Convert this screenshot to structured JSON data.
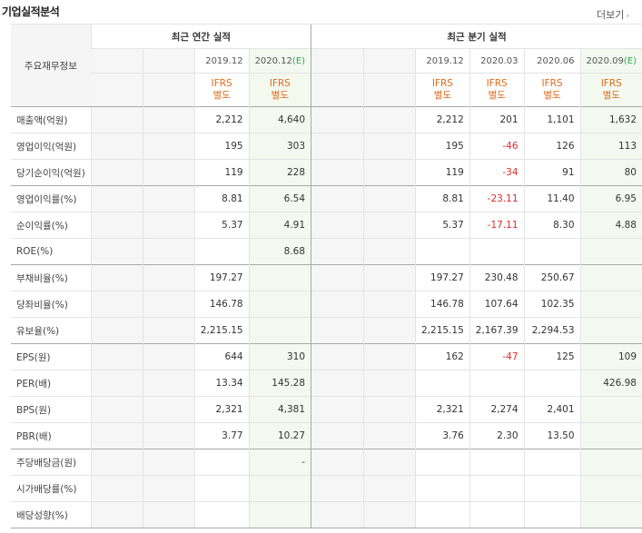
{
  "title": "기업실적분석",
  "more_label": "더보기",
  "more_chevron": "›",
  "row_header": "주요재무정보",
  "annual_group": "최근 연간 실적",
  "quarter_group": "최근 분기 실적",
  "annual_cols": [
    {
      "period": "",
      "est": "",
      "ifrs1": "",
      "ifrs2": ""
    },
    {
      "period": "",
      "est": "",
      "ifrs1": "",
      "ifrs2": ""
    },
    {
      "period": "2019.12",
      "est": "",
      "ifrs1": "IFRS",
      "ifrs2": "별도"
    },
    {
      "period": "2020.12",
      "est": "(E)",
      "ifrs1": "IFRS",
      "ifrs2": "별도"
    }
  ],
  "quarter_cols": [
    {
      "period": "",
      "est": "",
      "ifrs1": "",
      "ifrs2": ""
    },
    {
      "period": "",
      "est": "",
      "ifrs1": "",
      "ifrs2": ""
    },
    {
      "period": "2019.12",
      "est": "",
      "ifrs1": "IFRS",
      "ifrs2": "별도"
    },
    {
      "period": "2020.03",
      "est": "",
      "ifrs1": "IFRS",
      "ifrs2": "별도"
    },
    {
      "period": "2020.06",
      "est": "",
      "ifrs1": "IFRS",
      "ifrs2": "별도"
    },
    {
      "period": "2020.09",
      "est": "(E)",
      "ifrs1": "IFRS",
      "ifrs2": "별도"
    }
  ],
  "rows": [
    {
      "label": "매출액(억원)",
      "annual": [
        "",
        "",
        "2,212",
        "4,640"
      ],
      "quarter": [
        "",
        "",
        "2,212",
        "201",
        "1,101",
        "1,632"
      ]
    },
    {
      "label": "영업이익(억원)",
      "annual": [
        "",
        "",
        "195",
        "303"
      ],
      "quarter": [
        "",
        "",
        "195",
        "-46",
        "126",
        "113"
      ]
    },
    {
      "label": "당기순이익(억원)",
      "annual": [
        "",
        "",
        "119",
        "228"
      ],
      "quarter": [
        "",
        "",
        "119",
        "-34",
        "91",
        "80"
      ]
    },
    {
      "label": "영업이익률(%)",
      "annual": [
        "",
        "",
        "8.81",
        "6.54"
      ],
      "quarter": [
        "",
        "",
        "8.81",
        "-23.11",
        "11.40",
        "6.95"
      ]
    },
    {
      "label": "순이익률(%)",
      "annual": [
        "",
        "",
        "5.37",
        "4.91"
      ],
      "quarter": [
        "",
        "",
        "5.37",
        "-17.11",
        "8.30",
        "4.88"
      ]
    },
    {
      "label": "ROE(%)",
      "annual": [
        "",
        "",
        "",
        "8.68"
      ],
      "quarter": [
        "",
        "",
        "",
        "",
        "",
        ""
      ]
    },
    {
      "label": "부채비율(%)",
      "annual": [
        "",
        "",
        "197.27",
        ""
      ],
      "quarter": [
        "",
        "",
        "197.27",
        "230.48",
        "250.67",
        ""
      ]
    },
    {
      "label": "당좌비율(%)",
      "annual": [
        "",
        "",
        "146.78",
        ""
      ],
      "quarter": [
        "",
        "",
        "146.78",
        "107.64",
        "102.35",
        ""
      ]
    },
    {
      "label": "유보율(%)",
      "annual": [
        "",
        "",
        "2,215.15",
        ""
      ],
      "quarter": [
        "",
        "",
        "2,215.15",
        "2,167.39",
        "2,294.53",
        ""
      ]
    },
    {
      "label": "EPS(원)",
      "annual": [
        "",
        "",
        "644",
        "310"
      ],
      "quarter": [
        "",
        "",
        "162",
        "-47",
        "125",
        "109"
      ]
    },
    {
      "label": "PER(배)",
      "annual": [
        "",
        "",
        "13.34",
        "145.28"
      ],
      "quarter": [
        "",
        "",
        "",
        "",
        "",
        "426.98"
      ]
    },
    {
      "label": "BPS(원)",
      "annual": [
        "",
        "",
        "2,321",
        "4,381"
      ],
      "quarter": [
        "",
        "",
        "2,321",
        "2,274",
        "2,401",
        ""
      ]
    },
    {
      "label": "PBR(배)",
      "annual": [
        "",
        "",
        "3.77",
        "10.27"
      ],
      "quarter": [
        "",
        "",
        "3.76",
        "2.30",
        "13.50",
        ""
      ]
    },
    {
      "label": "주당배당금(원)",
      "annual": [
        "",
        "",
        "",
        "-"
      ],
      "quarter": [
        "",
        "",
        "",
        "",
        "",
        ""
      ]
    },
    {
      "label": "시가배당률(%)",
      "annual": [
        "",
        "",
        "",
        ""
      ],
      "quarter": [
        "",
        "",
        "",
        "",
        "",
        ""
      ]
    },
    {
      "label": "배당성향(%)",
      "annual": [
        "",
        "",
        "",
        ""
      ],
      "quarter": [
        "",
        "",
        "",
        "",
        "",
        ""
      ]
    }
  ],
  "colors": {
    "ifrs": "#e06a1b",
    "negative": "#e12a2a",
    "estimate_bg": "#f3f9ef",
    "estimate_text": "#2fa84f",
    "divider": "#a9a9a9"
  }
}
